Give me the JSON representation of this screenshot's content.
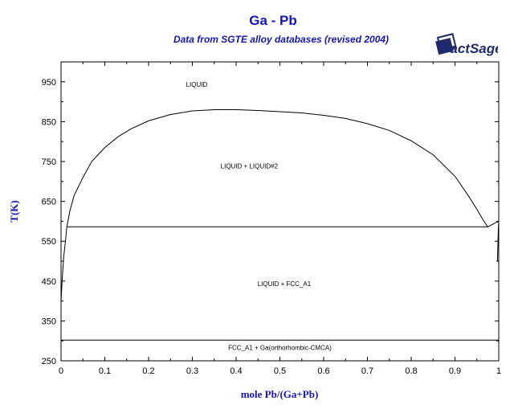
{
  "header": {
    "title": "Ga - Pb",
    "subtitle": "Data from SGTE alloy databases (revised 2004)",
    "logo_text": "FactSage™"
  },
  "colors": {
    "title": "#1515b8",
    "axis_label": "#1515b8",
    "lines": "#000000"
  },
  "chart_data": {
    "type": "line",
    "title": "Ga - Pb",
    "subtitle": "Data from SGTE alloy databases (revised 2004)",
    "xlabel": "mole Pb/(Ga+Pb)",
    "ylabel": "T(K)",
    "xlim": [
      0,
      1
    ],
    "ylim": [
      250,
      1000
    ],
    "xticks": [
      0,
      0.1,
      0.2,
      0.3,
      0.4,
      0.5,
      0.6,
      0.7,
      0.8,
      0.9,
      1
    ],
    "xtick_labels": [
      "0",
      "0.1",
      "0.2",
      "0.3",
      "0.4",
      "0.5",
      "0.6",
      "0.7",
      "0.8",
      "0.9",
      "1"
    ],
    "yticks": [
      250,
      350,
      450,
      550,
      650,
      750,
      850,
      950
    ],
    "ytick_labels": [
      "250",
      "350",
      "450",
      "550",
      "650",
      "750",
      "850",
      "950"
    ],
    "grid": false,
    "series": [
      {
        "x": [
          0,
          0.003,
          0.006,
          0.01,
          0.013
        ],
        "y": [
          400,
          460,
          510,
          550,
          584
        ]
      },
      {
        "x": [
          0.013,
          0.02,
          0.03,
          0.05,
          0.07,
          0.1,
          0.13,
          0.16,
          0.2,
          0.25,
          0.3,
          0.35,
          0.4,
          0.45,
          0.5,
          0.55,
          0.6,
          0.65,
          0.7,
          0.75,
          0.8,
          0.85,
          0.9,
          0.93,
          0.95,
          0.965,
          0.975
        ],
        "y": [
          584,
          625,
          665,
          710,
          750,
          785,
          812,
          832,
          852,
          868,
          877,
          880,
          880,
          878,
          875,
          872,
          866,
          858,
          845,
          828,
          802,
          767,
          713,
          665,
          630,
          602,
          586
        ]
      },
      {
        "x": [
          0.013,
          0.975
        ],
        "y": [
          586,
          586
        ]
      },
      {
        "x": [
          0.975,
          0.99,
          1.0
        ],
        "y": [
          586,
          595,
          600
        ]
      },
      {
        "x": [
          0.997,
          0.998,
          0.999,
          1.0
        ],
        "y": [
          500,
          540,
          580,
          600
        ]
      },
      {
        "x": [
          0,
          1
        ],
        "y": [
          302,
          302
        ]
      }
    ],
    "annotations": [
      {
        "text": "LIQUID",
        "x": 0.31,
        "y": 937
      },
      {
        "text": "LIQUID + LIQUID#2",
        "x": 0.43,
        "y": 733
      },
      {
        "text": "LIQUID + FCC_A1",
        "x": 0.51,
        "y": 438
      },
      {
        "text": "FCC_A1 + Ga(orthorhombic-CMCA)",
        "x": 0.5,
        "y": 277
      }
    ]
  }
}
